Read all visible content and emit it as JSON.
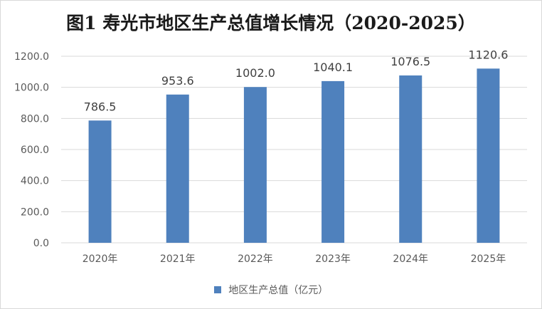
{
  "chart_data": {
    "type": "bar",
    "title": "图1 寿光市地区生产总值增长情况（2020-2025）",
    "categories": [
      "2020年",
      "2021年",
      "2022年",
      "2023年",
      "2024年",
      "2025年"
    ],
    "series": [
      {
        "name": "地区生产总值（亿元）",
        "values": [
          786.5,
          953.6,
          1002.0,
          1040.1,
          1076.5,
          1120.6
        ]
      }
    ],
    "value_labels": [
      "786.5",
      "953.6",
      "1002.0",
      "1040.1",
      "1076.5",
      "1120.6"
    ],
    "yticks": [
      "0.0",
      "200.0",
      "400.0",
      "600.0",
      "800.0",
      "1000.0",
      "1200.0"
    ],
    "ylim": [
      0,
      1200
    ],
    "grid": true,
    "legend_position": "bottom",
    "colors": {
      "bar": "#4f81bd",
      "grid": "#d9d9d9"
    }
  }
}
